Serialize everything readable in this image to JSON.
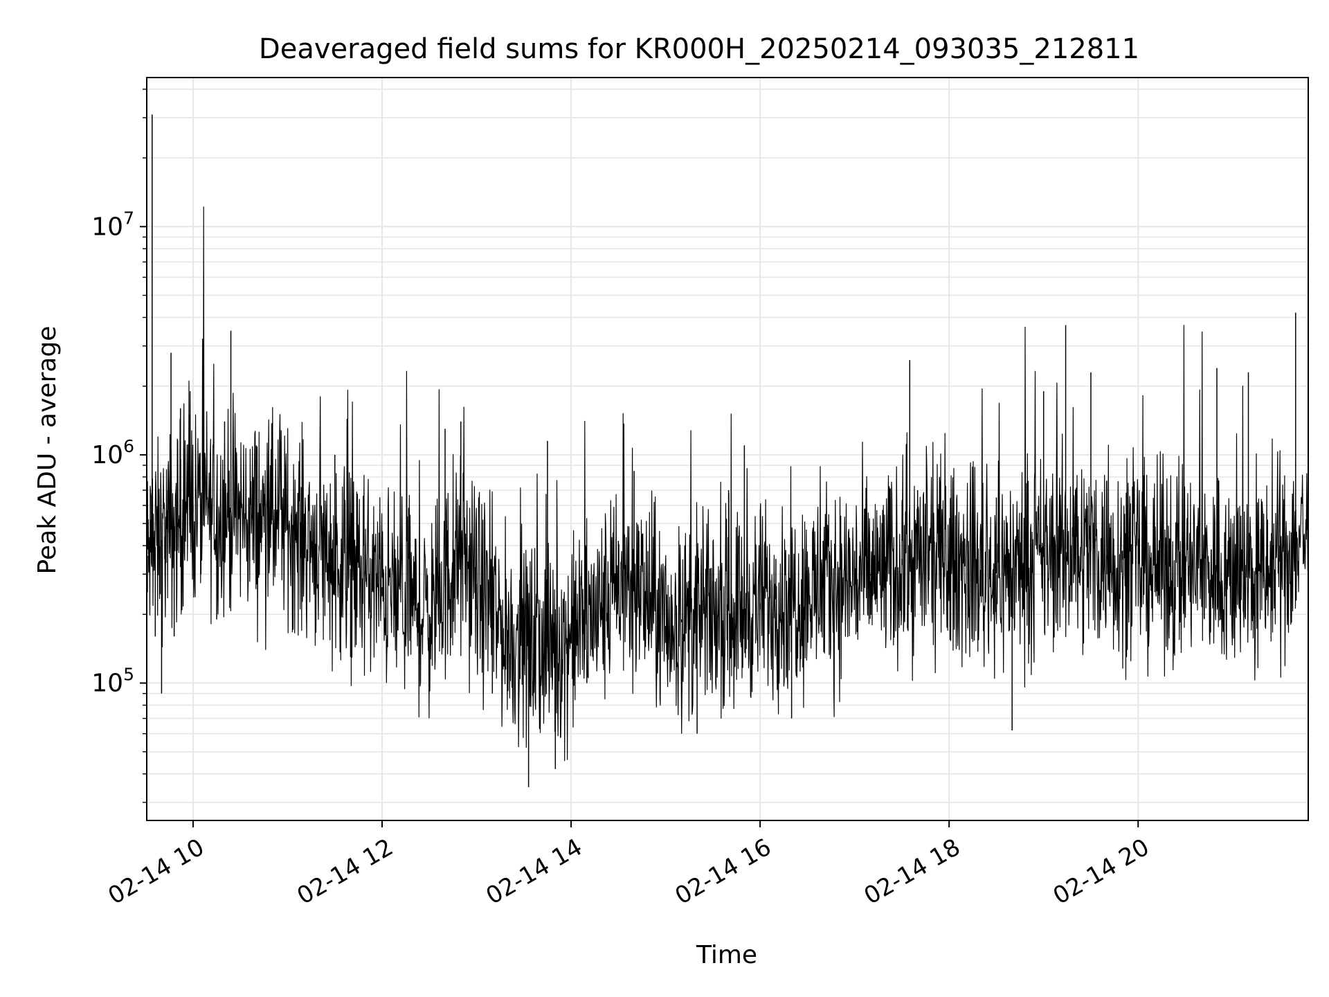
{
  "chart_data": {
    "type": "line",
    "title": "Deaveraged field sums for KR000H_20250214_093035_212811",
    "xlabel": "Time",
    "ylabel": "Peak ADU - average",
    "xlim": [
      "2025-02-14 09:30:35",
      "2025-02-14 21:48:00"
    ],
    "ylim": [
      25000,
      45000000
    ],
    "yscale": "log",
    "grid": true,
    "line_color": "#000000",
    "grid_color": "#e6e6e6",
    "x_ticks": [
      {
        "value": "2025-02-14 10:00",
        "label": "02-14 10"
      },
      {
        "value": "2025-02-14 12:00",
        "label": "02-14 12"
      },
      {
        "value": "2025-02-14 14:00",
        "label": "02-14 14"
      },
      {
        "value": "2025-02-14 16:00",
        "label": "02-14 16"
      },
      {
        "value": "2025-02-14 18:00",
        "label": "02-14 18"
      },
      {
        "value": "2025-02-14 20:00",
        "label": "02-14 20"
      }
    ],
    "y_ticks": [
      {
        "value": 100000,
        "base": "10",
        "exp": "5"
      },
      {
        "value": 1000000,
        "base": "10",
        "exp": "6"
      },
      {
        "value": 10000000,
        "base": "10",
        "exp": "7"
      }
    ],
    "series": [
      {
        "x": [
          "2025-02-14 09:31",
          "2025-02-14 09:33",
          "2025-02-14 09:34",
          "2025-02-14 09:36",
          "2025-02-14 09:38",
          "2025-02-14 09:40",
          "2025-02-14 09:42",
          "2025-02-14 09:44",
          "2025-02-14 09:46",
          "2025-02-14 09:48",
          "2025-02-14 09:50",
          "2025-02-14 09:52",
          "2025-02-14 09:55",
          "2025-02-14 09:58",
          "2025-02-14 10:00",
          "2025-02-14 10:05",
          "2025-02-14 10:10",
          "2025-02-14 10:15",
          "2025-02-14 10:20",
          "2025-02-14 10:24",
          "2025-02-14 10:30",
          "2025-02-14 10:40",
          "2025-02-14 10:50",
          "2025-02-14 11:00",
          "2025-02-14 11:10",
          "2025-02-14 11:20",
          "2025-02-14 11:30",
          "2025-02-14 11:40",
          "2025-02-14 11:50",
          "2025-02-14 12:00",
          "2025-02-14 12:10",
          "2025-02-14 12:20",
          "2025-02-14 12:30",
          "2025-02-14 12:40",
          "2025-02-14 12:45",
          "2025-02-14 12:50",
          "2025-02-14 13:00",
          "2025-02-14 13:10",
          "2025-02-14 13:20",
          "2025-02-14 13:30",
          "2025-02-14 13:33",
          "2025-02-14 13:40",
          "2025-02-14 13:45",
          "2025-02-14 13:50",
          "2025-02-14 14:00",
          "2025-02-14 14:10",
          "2025-02-14 14:20",
          "2025-02-14 14:30",
          "2025-02-14 14:40",
          "2025-02-14 14:50",
          "2025-02-14 15:00",
          "2025-02-14 15:10",
          "2025-02-14 15:20",
          "2025-02-14 15:30",
          "2025-02-14 15:40",
          "2025-02-14 15:50",
          "2025-02-14 16:00",
          "2025-02-14 16:10",
          "2025-02-14 16:20",
          "2025-02-14 16:30",
          "2025-02-14 16:40",
          "2025-02-14 16:50",
          "2025-02-14 17:00",
          "2025-02-14 17:10",
          "2025-02-14 17:20",
          "2025-02-14 17:30",
          "2025-02-14 17:35",
          "2025-02-14 17:40",
          "2025-02-14 17:50",
          "2025-02-14 18:00",
          "2025-02-14 18:10",
          "2025-02-14 18:20",
          "2025-02-14 18:30",
          "2025-02-14 18:40",
          "2025-02-14 18:50",
          "2025-02-14 19:00",
          "2025-02-14 19:10",
          "2025-02-14 19:14",
          "2025-02-14 19:20",
          "2025-02-14 19:30",
          "2025-02-14 19:40",
          "2025-02-14 19:50",
          "2025-02-14 20:00",
          "2025-02-14 20:10",
          "2025-02-14 20:20",
          "2025-02-14 20:30",
          "2025-02-14 20:40",
          "2025-02-14 20:50",
          "2025-02-14 21:00",
          "2025-02-14 21:10",
          "2025-02-14 21:20",
          "2025-02-14 21:30",
          "2025-02-14 21:35",
          "2025-02-14 21:40",
          "2025-02-14 21:47"
        ],
        "y": [
          250000,
          520000,
          31000000,
          160000,
          420000,
          90000,
          350000,
          700000,
          2800000,
          160000,
          380000,
          1600000,
          480000,
          1500000,
          560000,
          300000,
          650000,
          190000,
          1400000,
          3500000,
          620000,
          510000,
          1350000,
          470000,
          330000,
          380000,
          1000000,
          130000,
          280000,
          240000,
          170000,
          300000,
          110000,
          1300000,
          420000,
          1400000,
          210000,
          90000,
          170000,
          120000,
          35000,
          200000,
          1150000,
          42000,
          150000,
          100000,
          180000,
          420000,
          850000,
          230000,
          150000,
          190000,
          60000,
          280000,
          700000,
          1100000,
          210000,
          350000,
          70000,
          310000,
          420000,
          250000,
          380000,
          300000,
          340000,
          350000,
          2600000,
          700000,
          330000,
          310000,
          430000,
          240000,
          650000,
          62000,
          310000,
          1900000,
          350000,
          3700000,
          550000,
          2300000,
          300000,
          380000,
          340000,
          400000,
          430000,
          360000,
          330000,
          2400000,
          300000,
          2300000,
          280000,
          400000,
          250000,
          4200000,
          520000
        ]
      }
    ]
  }
}
